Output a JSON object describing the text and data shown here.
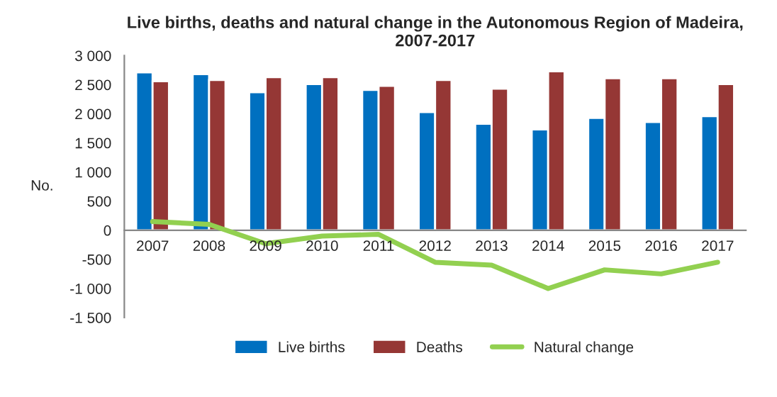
{
  "chart_data": {
    "type": "bar",
    "title": "Live births, deaths and natural change in the Autonomous Region of Madeira, 2007-2017",
    "ylabel": "No.",
    "categories": [
      "2007",
      "2008",
      "2009",
      "2010",
      "2011",
      "2012",
      "2013",
      "2014",
      "2015",
      "2016",
      "2017"
    ],
    "series": [
      {
        "name": "Live births",
        "color": "#0070c0",
        "values": [
          2710,
          2680,
          2370,
          2510,
          2410,
          2030,
          1830,
          1730,
          1930,
          1860,
          1960
        ]
      },
      {
        "name": "Deaths",
        "color": "#953735",
        "values": [
          2560,
          2580,
          2630,
          2630,
          2480,
          2580,
          2430,
          2730,
          2610,
          2610,
          2510
        ]
      },
      {
        "name": "Natural change",
        "type": "line",
        "color": "#92d050",
        "values": [
          150,
          100,
          -230,
          -100,
          -70,
          -550,
          -600,
          -1000,
          -680,
          -750,
          -550
        ]
      }
    ],
    "ylim": [
      -1500,
      3000
    ],
    "yticks": [
      {
        "value": -1500,
        "label": "-1 500"
      },
      {
        "value": -1000,
        "label": "-1 000"
      },
      -500,
      0,
      500,
      {
        "value": 1000,
        "label": "1 000"
      },
      {
        "value": 1500,
        "label": "1 500"
      },
      {
        "value": 2000,
        "label": "2 000"
      },
      {
        "value": 2500,
        "label": "2 500"
      },
      {
        "value": 3000,
        "label": "3 000"
      }
    ],
    "grid": false,
    "legend": "bottom",
    "marker": "none"
  }
}
